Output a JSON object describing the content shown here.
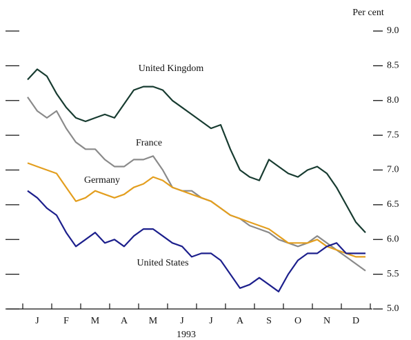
{
  "chart_data": {
    "type": "line",
    "x_label": "1993",
    "y_label": "Per cent",
    "categories": [
      null,
      "J",
      null,
      null,
      "F",
      null,
      null,
      "M",
      null,
      null,
      "A",
      null,
      null,
      "M",
      null,
      null,
      "J",
      null,
      null,
      "J",
      null,
      null,
      "A",
      null,
      null,
      "S",
      null,
      null,
      "O",
      null,
      null,
      "N",
      null,
      null,
      "D",
      null
    ],
    "ylim": [
      5,
      9
    ],
    "yticks": [
      {
        "value": 5,
        "label": "5.0"
      },
      5.5,
      {
        "value": 6,
        "label": "6.0"
      },
      6.5,
      {
        "value": 7,
        "label": "7.0"
      },
      7.5,
      {
        "value": 8,
        "label": "8.0"
      },
      8.5,
      {
        "value": 9,
        "label": "9.0"
      }
    ],
    "series": [
      {
        "name": "United Kingdom",
        "color": "#173b30",
        "values": [
          8.3,
          8.45,
          8.35,
          8.1,
          7.9,
          7.75,
          7.7,
          7.75,
          7.8,
          7.75,
          7.95,
          8.15,
          8.2,
          8.2,
          8.15,
          8.0,
          7.9,
          7.8,
          7.7,
          7.6,
          7.65,
          7.3,
          7.0,
          6.9,
          6.85,
          7.15,
          7.05,
          6.95,
          6.9,
          7.0,
          7.05,
          6.95,
          6.75,
          6.5,
          6.25,
          6.1
        ]
      },
      {
        "name": "France",
        "color": "#8a8a8a",
        "values": [
          8.05,
          7.85,
          7.75,
          7.85,
          7.6,
          7.4,
          7.3,
          7.3,
          7.15,
          7.05,
          7.05,
          7.15,
          7.15,
          7.2,
          7.0,
          6.75,
          6.7,
          6.7,
          6.6,
          6.55,
          6.45,
          6.35,
          6.3,
          6.2,
          6.15,
          6.1,
          6.0,
          5.95,
          5.9,
          5.95,
          6.05,
          5.95,
          5.85,
          5.75,
          5.65,
          5.55
        ]
      },
      {
        "name": "Germany",
        "color": "#e39e1e",
        "values": [
          7.1,
          7.05,
          7.0,
          6.95,
          6.75,
          6.55,
          6.6,
          6.7,
          6.65,
          6.6,
          6.65,
          6.75,
          6.8,
          6.9,
          6.85,
          6.75,
          6.7,
          6.65,
          6.6,
          6.55,
          6.45,
          6.35,
          6.3,
          6.25,
          6.2,
          6.15,
          6.05,
          5.95,
          5.95,
          5.95,
          6.0,
          5.9,
          5.85,
          5.8,
          5.75,
          5.75
        ]
      },
      {
        "name": "United States",
        "color": "#1c1f8c",
        "values": [
          6.7,
          6.6,
          6.45,
          6.35,
          6.1,
          5.9,
          6.0,
          6.1,
          5.95,
          6.0,
          5.9,
          6.05,
          6.15,
          6.15,
          6.05,
          5.95,
          5.9,
          5.75,
          5.8,
          5.8,
          5.7,
          5.5,
          5.3,
          5.35,
          5.45,
          5.35,
          5.25,
          5.5,
          5.7,
          5.8,
          5.8,
          5.9,
          5.95,
          5.8,
          5.8,
          5.8
        ]
      }
    ]
  }
}
